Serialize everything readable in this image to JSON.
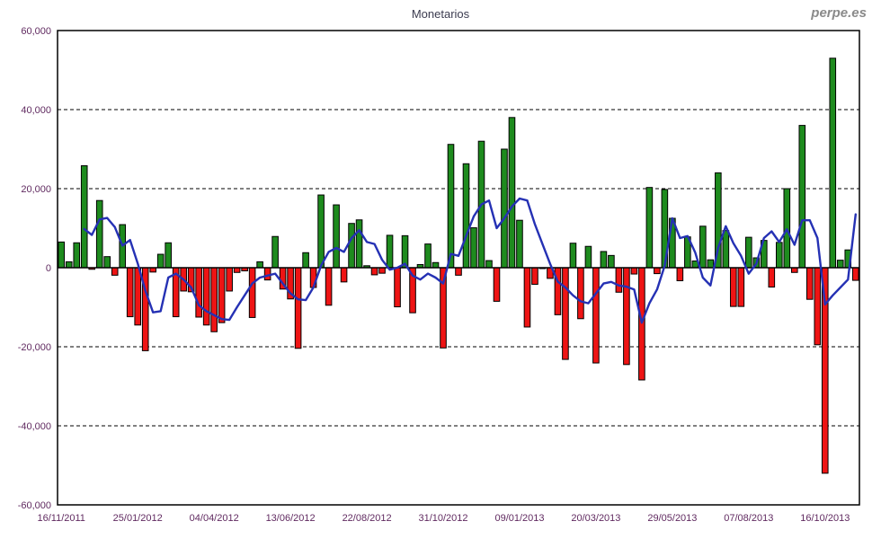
{
  "header": {
    "title": "Monetarios",
    "watermark": "perpe.es"
  },
  "colors": {
    "bar_positive": "#1e8b1e",
    "bar_negative": "#ee1414",
    "bar_border": "#000000",
    "line": "#2531b4",
    "axis_border": "#000000",
    "gridline": "#000000",
    "tick_label": "#602a60",
    "background": "#ffffff"
  },
  "chart_data": {
    "type": "bar",
    "title": "Monetarios",
    "xlabel": "",
    "ylabel": "",
    "ylim": [
      -60000,
      60000
    ],
    "ytick_step": 20000,
    "y_tick_labels": [
      "60,000",
      "40,000",
      "20,000",
      "0",
      "-20,000",
      "-40,000",
      "-60,000"
    ],
    "grid": "horizontal-dashed",
    "legend": "none",
    "x_tick_every": 10,
    "x": [
      "16/11/2011",
      "23/11/2011",
      "30/11/2011",
      "07/12/2011",
      "14/12/2011",
      "21/12/2011",
      "28/12/2011",
      "04/01/2012",
      "11/01/2012",
      "18/01/2012",
      "25/01/2012",
      "01/02/2012",
      "08/02/2012",
      "15/02/2012",
      "22/02/2012",
      "29/02/2012",
      "07/03/2012",
      "14/03/2012",
      "21/03/2012",
      "28/03/2012",
      "04/04/2012",
      "11/04/2012",
      "18/04/2012",
      "25/04/2012",
      "02/05/2012",
      "09/05/2012",
      "16/05/2012",
      "23/05/2012",
      "30/05/2012",
      "06/06/2012",
      "13/06/2012",
      "20/06/2012",
      "27/06/2012",
      "04/07/2012",
      "11/07/2012",
      "18/07/2012",
      "25/07/2012",
      "01/08/2012",
      "08/08/2012",
      "15/08/2012",
      "22/08/2012",
      "29/08/2012",
      "05/09/2012",
      "12/09/2012",
      "19/09/2012",
      "26/09/2012",
      "03/10/2012",
      "10/10/2012",
      "17/10/2012",
      "24/10/2012",
      "31/10/2012",
      "07/11/2012",
      "14/11/2012",
      "21/11/2012",
      "28/11/2012",
      "05/12/2012",
      "12/12/2012",
      "19/12/2012",
      "26/12/2012",
      "02/01/2013",
      "09/01/2013",
      "16/01/2013",
      "23/01/2013",
      "30/01/2013",
      "06/02/2013",
      "13/02/2013",
      "20/02/2013",
      "27/02/2013",
      "06/03/2013",
      "13/03/2013",
      "20/03/2013",
      "27/03/2013",
      "03/04/2013",
      "10/04/2013",
      "17/04/2013",
      "24/04/2013",
      "01/05/2013",
      "08/05/2013",
      "15/05/2013",
      "22/05/2013",
      "29/05/2013",
      "05/06/2013",
      "12/06/2013",
      "19/06/2013",
      "26/06/2013",
      "03/07/2013",
      "10/07/2013",
      "17/07/2013",
      "24/07/2013",
      "31/07/2013",
      "07/08/2013",
      "14/08/2013",
      "21/08/2013",
      "28/08/2013",
      "04/09/2013",
      "11/09/2013",
      "18/09/2013",
      "25/09/2013",
      "02/10/2013",
      "09/10/2013",
      "16/10/2013",
      "23/10/2013",
      "30/10/2013",
      "06/11/2013",
      "13/11/2013"
    ],
    "series": [
      {
        "name": "weekly-net-flow-bars",
        "type": "bar",
        "values": [
          6500,
          1500,
          6300,
          25800,
          -400,
          17000,
          2800,
          -1900,
          10900,
          -12400,
          -14500,
          -21000,
          -1100,
          3400,
          6300,
          -12400,
          -5900,
          -6100,
          -12500,
          -14500,
          -16200,
          -13900,
          -5900,
          -1200,
          -800,
          -12600,
          1500,
          -3100,
          7900,
          -5400,
          -7900,
          -20400,
          3800,
          -5000,
          18400,
          -9500,
          15900,
          -3600,
          11200,
          12100,
          500,
          -1800,
          -1400,
          8200,
          -9900,
          8100,
          -11400,
          800,
          6000,
          1300,
          -20300,
          31200,
          -1900,
          26300,
          10100,
          32000,
          1800,
          -8500,
          30000,
          38000,
          12000,
          -15000,
          -4200,
          0,
          -2700,
          -11900,
          -23200,
          6200,
          -12900,
          5400,
          -24100,
          4100,
          3100,
          -6200,
          -24500,
          -1600,
          -28400,
          20300,
          -1500,
          19800,
          12500,
          -3300,
          7800,
          1700,
          10500,
          2000,
          24000,
          9400,
          -9800,
          -9800,
          7700,
          2500,
          6900,
          -4900,
          6400,
          20000,
          -1200,
          36000,
          -8000,
          -19500,
          -52000,
          53000,
          1900,
          4500,
          -3200
        ]
      },
      {
        "name": "moving-average-line",
        "type": "line",
        "values": [
          null,
          null,
          null,
          9800,
          8300,
          12200,
          12600,
          10300,
          5600,
          7000,
          1100,
          -5800,
          -11300,
          -11000,
          -2500,
          -1500,
          -3000,
          -5000,
          -9500,
          -11000,
          -12000,
          -13000,
          -13200,
          -10000,
          -7000,
          -4000,
          -2500,
          -2000,
          -1500,
          -4000,
          -6500,
          -8000,
          -8200,
          -5000,
          500,
          4000,
          5000,
          4000,
          7500,
          9500,
          6500,
          6000,
          2000,
          -500,
          0,
          1000,
          -2000,
          -3000,
          -1500,
          -2500,
          -4000,
          3500,
          3000,
          8000,
          13000,
          16000,
          17000,
          10000,
          12500,
          15500,
          17500,
          17000,
          11000,
          6000,
          1000,
          -3500,
          -5000,
          -7000,
          -8500,
          -9000,
          -6500,
          -4000,
          -3600,
          -4500,
          -4800,
          -5500,
          -13900,
          -9000,
          -5500,
          500,
          12500,
          7500,
          8000,
          3800,
          -2500,
          -4500,
          5000,
          10500,
          6200,
          3000,
          -1500,
          1000,
          7500,
          9200,
          6500,
          9700,
          5800,
          12000,
          12000,
          7500,
          -9300,
          -7000,
          -5000,
          -3000,
          13500
        ]
      }
    ]
  }
}
